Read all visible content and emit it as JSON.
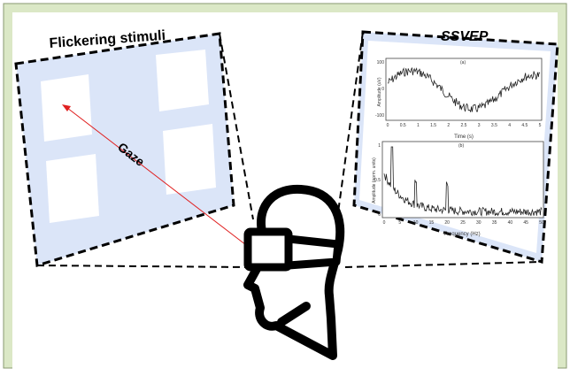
{
  "colors": {
    "frame": "#dbe8c6",
    "panel": "#dbe5f8",
    "stimulus": "#ffffff",
    "line": "#000000",
    "gaze_arrow": "#e02020",
    "trace": "#222222"
  },
  "stimuli_panel": {
    "title": "Flickering stimuli",
    "gaze_label": "Gaze"
  },
  "ssvep_panel": {
    "title": "SSVEP",
    "plot_a": {
      "label": "(a)",
      "xlabel": "Time (s)",
      "ylabel": "Amplitude (uV)",
      "xticks": [
        "0",
        "0.5",
        "1",
        "1.5",
        "2",
        "2.5",
        "3",
        "3.5",
        "4",
        "4.5",
        "5"
      ],
      "yticks": [
        "-100",
        "0",
        "100"
      ]
    },
    "plot_b": {
      "label": "(b)",
      "xlabel": "Frequency (Hz)",
      "ylabel": "Amplitude (norm. units)",
      "xticks": [
        "0",
        "5",
        "10",
        "15",
        "20",
        "25",
        "30",
        "35",
        "40",
        "45",
        "50"
      ],
      "yticks": [
        "0",
        "0.5",
        "1"
      ]
    }
  },
  "icons": {
    "head": "head-with-vr-headset-icon"
  }
}
